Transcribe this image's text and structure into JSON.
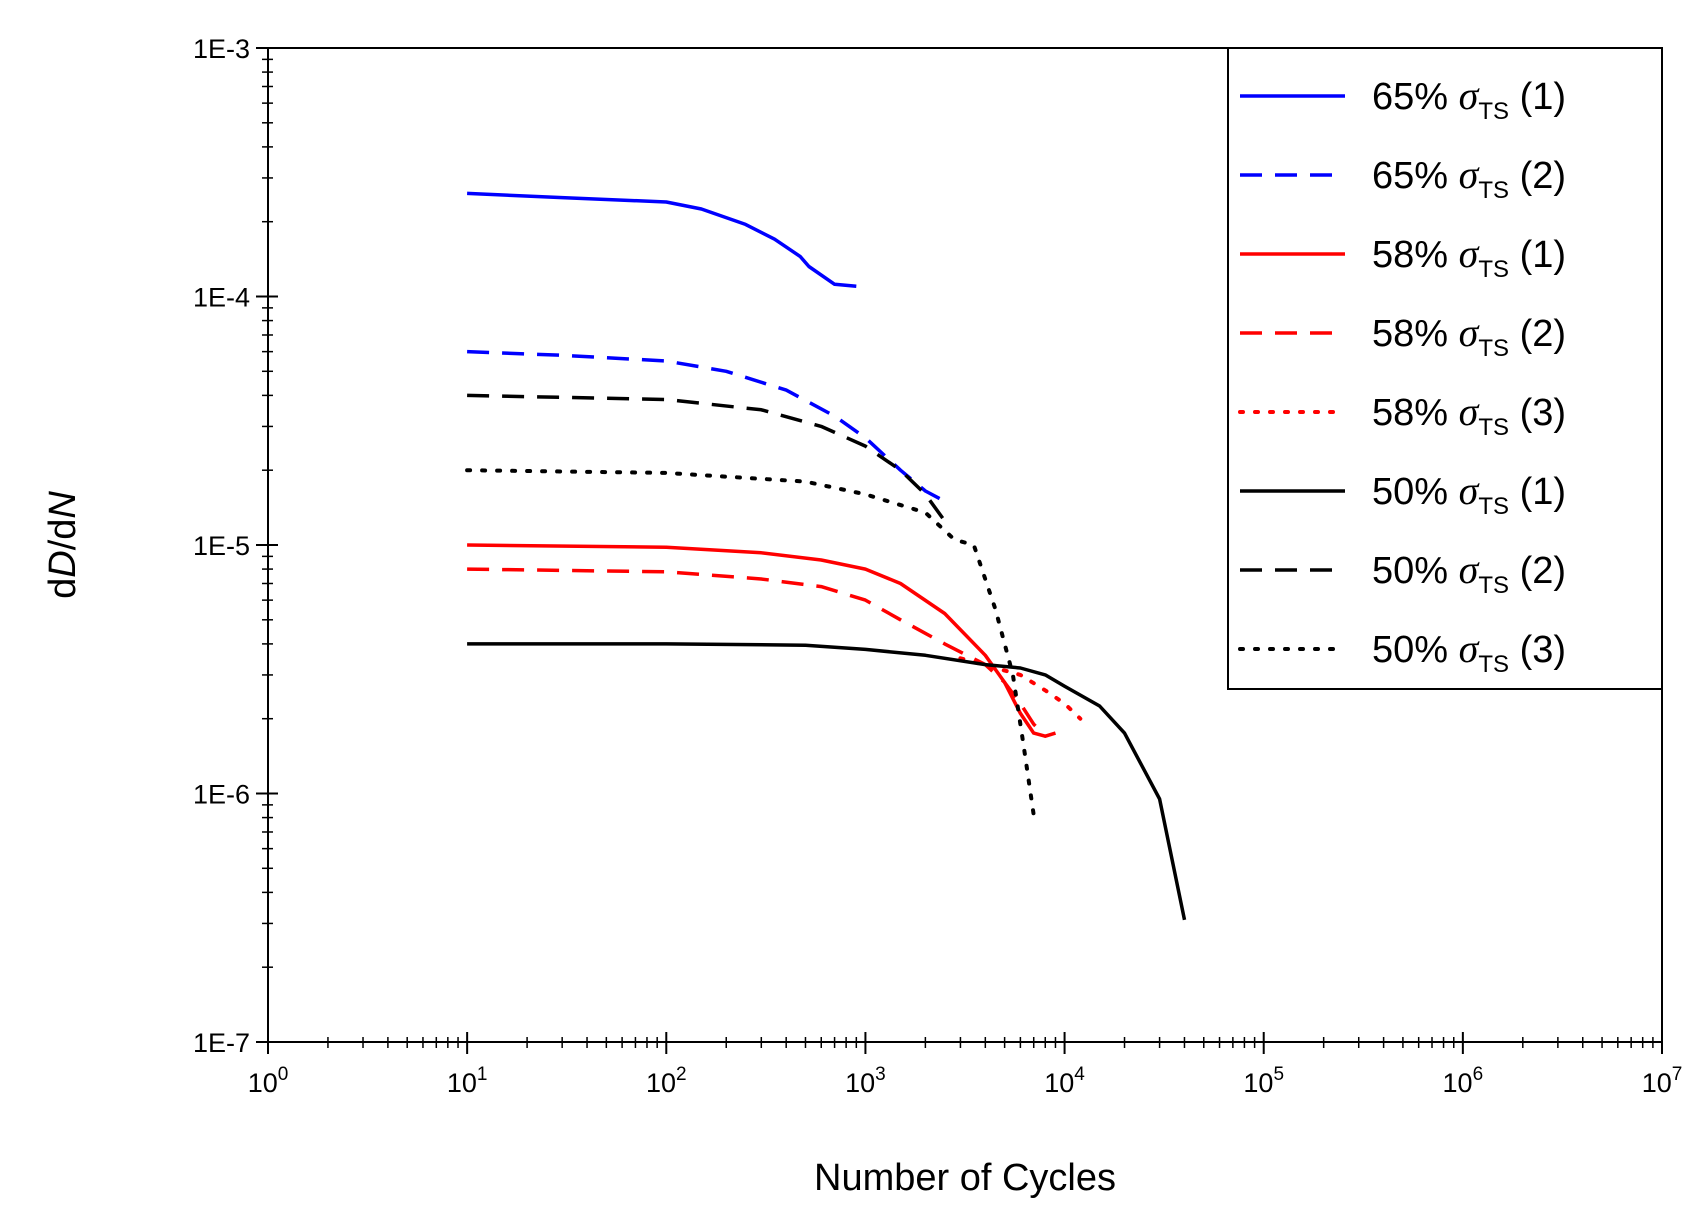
{
  "chart_data": {
    "type": "line",
    "title": "",
    "xlabel": "Number of Cycles",
    "ylabel": {
      "prefix": "d",
      "italic1": "D",
      "middle": "/d",
      "italic2": "N"
    },
    "xscale": "log",
    "yscale": "log",
    "xlim": [
      1,
      10000000
    ],
    "ylim": [
      1e-07,
      0.001
    ],
    "x_tick_base": "10",
    "x_tick_exponents": [
      "0",
      "1",
      "2",
      "3",
      "4",
      "5",
      "6",
      "7"
    ],
    "y_tick_labels": [
      "1E-7",
      "1E-6",
      "1E-5",
      "1E-4",
      "1E-3"
    ],
    "grid": false,
    "legend_position": "top-right",
    "series": [
      {
        "name": "65% σTS (1)",
        "load": "65% ",
        "symbol": "σ",
        "sub": "TS",
        "run": " (1)",
        "color": "#0000ff",
        "dash": "solid",
        "x": [
          10,
          30,
          100,
          150,
          250,
          350,
          470,
          520,
          700,
          900
        ],
        "y": [
          0.00026,
          0.00025,
          0.00024,
          0.000225,
          0.000195,
          0.00017,
          0.000145,
          0.000132,
          0.000112,
          0.00011
        ]
      },
      {
        "name": "65% σTS (2)",
        "load": "65% ",
        "symbol": "σ",
        "sub": "TS",
        "run": " (2)",
        "color": "#0000ff",
        "dash": "dashed",
        "x": [
          10,
          30,
          100,
          200,
          400,
          700,
          1000,
          1500,
          2000,
          2500
        ],
        "y": [
          6e-05,
          5.8e-05,
          5.5e-05,
          5e-05,
          4.2e-05,
          3.3e-05,
          2.7e-05,
          2e-05,
          1.65e-05,
          1.5e-05
        ]
      },
      {
        "name": "58% σTS (1)",
        "load": "58% ",
        "symbol": "σ",
        "sub": "TS",
        "run": " (1)",
        "color": "#ff0000",
        "dash": "solid",
        "x": [
          10,
          100,
          300,
          600,
          1000,
          1500,
          2500,
          4000,
          5000,
          6000,
          7000,
          8000
        ],
        "y": [
          1e-05,
          9.8e-06,
          9.3e-06,
          8.7e-06,
          8e-06,
          7e-06,
          5.3e-06,
          3.6e-06,
          2.8e-06,
          2.1e-06,
          1.75e-06,
          1.7e-06
        ]
      },
      {
        "name": "58% σTS (2)",
        "load": "58% ",
        "symbol": "σ",
        "sub": "TS",
        "run": " (2)",
        "color": "#ff0000",
        "dash": "dashed",
        "x": [
          10,
          100,
          300,
          600,
          1000,
          1500,
          2500,
          4000,
          5000,
          6000,
          7000,
          8000,
          9000
        ],
        "y": [
          8e-06,
          7.8e-06,
          7.3e-06,
          6.8e-06,
          6e-06,
          5e-06,
          4e-06,
          3.3e-06,
          2.8e-06,
          2.3e-06,
          1.9e-06,
          1.7e-06,
          1.75e-06
        ]
      },
      {
        "name": "58% σTS (3)",
        "load": "58% ",
        "symbol": "σ",
        "sub": "TS",
        "run": " (3)",
        "color": "#ff0000",
        "dash": "dotted",
        "x": [
          3000,
          4500,
          6000,
          8000,
          10000,
          12000
        ],
        "y": [
          3.5e-06,
          3.2e-06,
          3e-06,
          2.6e-06,
          2.3e-06,
          2e-06
        ]
      },
      {
        "name": "50% σTS (1)",
        "load": "50% ",
        "symbol": "σ",
        "sub": "TS",
        "run": " (1)",
        "color": "#000000",
        "dash": "solid",
        "x": [
          10,
          100,
          500,
          1000,
          2000,
          4000,
          6000,
          8000,
          10000,
          15000,
          20000,
          30000,
          40000
        ],
        "y": [
          4e-06,
          4e-06,
          3.95e-06,
          3.8e-06,
          3.6e-06,
          3.3e-06,
          3.2e-06,
          3e-06,
          2.7e-06,
          2.25e-06,
          1.75e-06,
          9.5e-07,
          3.1e-07
        ]
      },
      {
        "name": "50% σTS (2)",
        "load": "50% ",
        "symbol": "σ",
        "sub": "TS",
        "run": " (2)",
        "color": "#000000",
        "dash": "dashed",
        "x": [
          10,
          100,
          300,
          600,
          1000,
          1500,
          2000,
          2500
        ],
        "y": [
          4e-05,
          3.85e-05,
          3.5e-05,
          3e-05,
          2.5e-05,
          2e-05,
          1.6e-05,
          1.25e-05
        ]
      },
      {
        "name": "50% σTS (3)",
        "load": "50% ",
        "symbol": "σ",
        "sub": "TS",
        "run": " (3)",
        "color": "#000000",
        "dash": "dotted",
        "x": [
          10,
          100,
          500,
          1000,
          2000,
          2800,
          3500,
          4500,
          5500,
          6200,
          7000
        ],
        "y": [
          2e-05,
          1.95e-05,
          1.8e-05,
          1.6e-05,
          1.35e-05,
          1.05e-05,
          1e-05,
          5.5e-06,
          3e-06,
          1.6e-06,
          8.2e-07
        ]
      }
    ]
  }
}
